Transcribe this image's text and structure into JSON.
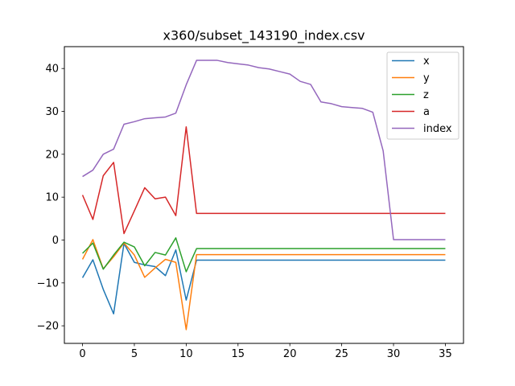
{
  "chart_data": {
    "type": "line",
    "title": "x360/subset_143190_index.csv",
    "xlabel": "",
    "ylabel": "",
    "xlim": [
      -1.75,
      36.75
    ],
    "ylim": [
      -24.1,
      45.1
    ],
    "xticks": [
      0,
      5,
      10,
      15,
      20,
      25,
      30,
      35
    ],
    "yticks": [
      -20,
      -10,
      0,
      10,
      20,
      30,
      40
    ],
    "ytick_labels": [
      "−20",
      "−10",
      "0",
      "10",
      "20",
      "30",
      "40"
    ],
    "grid": false,
    "legend_position": "top-right",
    "x": [
      0,
      1,
      2,
      3,
      4,
      5,
      6,
      7,
      8,
      9,
      10,
      11,
      12,
      13,
      14,
      15,
      16,
      17,
      18,
      19,
      20,
      21,
      22,
      23,
      24,
      25,
      26,
      27,
      28,
      29,
      30,
      31,
      32,
      33,
      34,
      35
    ],
    "series": [
      {
        "name": "x",
        "color": "#1f77b4",
        "values": [
          -8.8,
          -4.6,
          -11.5,
          -17.2,
          -0.8,
          -5.2,
          -5.8,
          -6.2,
          -8.3,
          -2.3,
          -14.0,
          -4.7,
          -4.7,
          -4.7,
          -4.7,
          -4.7,
          -4.7,
          -4.7,
          -4.7,
          -4.7,
          -4.7,
          -4.7,
          -4.7,
          -4.7,
          -4.7,
          -4.7,
          -4.7,
          -4.7,
          -4.7,
          -4.7,
          -4.7,
          -4.7,
          -4.7,
          -4.7,
          -4.7,
          -4.7
        ]
      },
      {
        "name": "y",
        "color": "#ff7f0e",
        "values": [
          -4.5,
          0.1,
          -6.7,
          -3.9,
          -0.7,
          -3.5,
          -8.7,
          -6.5,
          -4.5,
          -5.2,
          -20.9,
          -3.4,
          -3.4,
          -3.4,
          -3.4,
          -3.4,
          -3.4,
          -3.4,
          -3.4,
          -3.4,
          -3.4,
          -3.4,
          -3.4,
          -3.4,
          -3.4,
          -3.4,
          -3.4,
          -3.4,
          -3.4,
          -3.4,
          -3.4,
          -3.4,
          -3.4,
          -3.4,
          -3.4,
          -3.4
        ]
      },
      {
        "name": "z",
        "color": "#2ca02c",
        "values": [
          -3.1,
          -0.7,
          -6.8,
          -3.5,
          -0.5,
          -1.6,
          -6.0,
          -2.9,
          -3.5,
          0.5,
          -7.4,
          -2.0,
          -2.0,
          -2.0,
          -2.0,
          -2.0,
          -2.0,
          -2.0,
          -2.0,
          -2.0,
          -2.0,
          -2.0,
          -2.0,
          -2.0,
          -2.0,
          -2.0,
          -2.0,
          -2.0,
          -2.0,
          -2.0,
          -2.0,
          -2.0,
          -2.0,
          -2.0,
          -2.0,
          -2.0
        ]
      },
      {
        "name": "a",
        "color": "#d62728",
        "values": [
          10.5,
          4.8,
          15.0,
          18.1,
          1.5,
          6.8,
          12.2,
          9.6,
          10.0,
          5.7,
          26.4,
          6.2,
          6.2,
          6.2,
          6.2,
          6.2,
          6.2,
          6.2,
          6.2,
          6.2,
          6.2,
          6.2,
          6.2,
          6.2,
          6.2,
          6.2,
          6.2,
          6.2,
          6.2,
          6.2,
          6.2,
          6.2,
          6.2,
          6.2,
          6.2,
          6.2
        ]
      },
      {
        "name": "index",
        "color": "#9467bd",
        "values": [
          14.8,
          16.3,
          20.0,
          21.2,
          27.0,
          27.6,
          28.3,
          28.5,
          28.7,
          29.6,
          36.2,
          41.9,
          41.9,
          41.9,
          41.4,
          41.1,
          40.8,
          40.2,
          39.9,
          39.3,
          38.7,
          37.0,
          36.3,
          32.2,
          31.8,
          31.1,
          30.9,
          30.7,
          29.8,
          20.8,
          0.1,
          0.1,
          0.1,
          0.1,
          0.1,
          0.1
        ]
      }
    ]
  }
}
